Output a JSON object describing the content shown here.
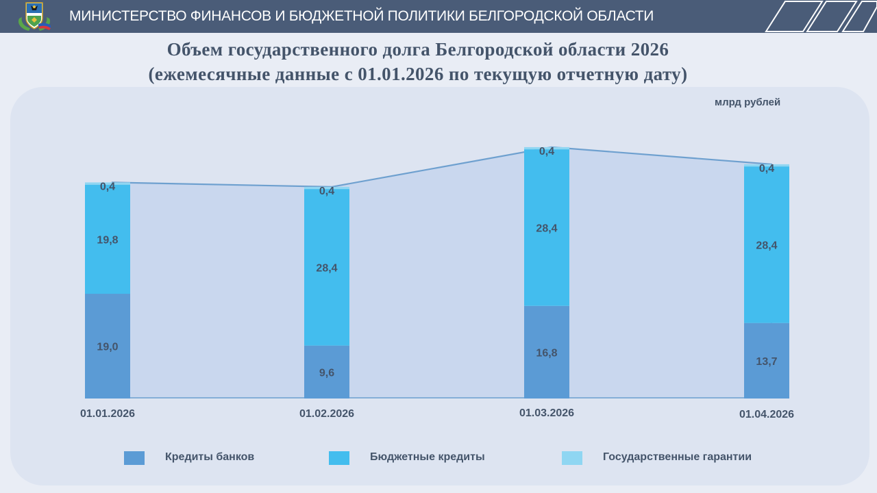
{
  "header": {
    "title": "МИНИСТЕРСТВО ФИНАНСОВ И БЮДЖЕТНОЙ ПОЛИТИКИ БЕЛГОРОДСКОЙ ОБЛАСТИ",
    "logo_icon": "belgorod-coat-of-arms-icon"
  },
  "title_line1": "Объем государственного долга Белгородской области 2026",
  "title_line2": "(ежемесячные данные с 01.01.2026 по текущую отчетную дату)",
  "unit_label": "млрд рублей",
  "colors": {
    "header": "#4a5c78",
    "bank_credits": "#5b9bd5",
    "budget_credits": "#43bdee",
    "guarantees": "#8fd6f2",
    "area_fill": "#c9d7ee",
    "area_line": "#6ea0cf",
    "label_text": "#44546a"
  },
  "chart_data": {
    "type": "bar",
    "stacked": true,
    "categories": [
      "01.01.2026",
      "01.02.2026",
      "01.03.2026",
      "01.04.2026"
    ],
    "series": [
      {
        "name": "Кредиты банков",
        "values": [
          19.0,
          9.6,
          16.8,
          13.7
        ],
        "labels": [
          "19,0",
          "9,6",
          "16,8",
          "13,7"
        ],
        "color": "#5b9bd5"
      },
      {
        "name": "Бюджетные кредиты",
        "values": [
          19.8,
          28.4,
          28.4,
          28.4
        ],
        "labels": [
          "19,8",
          "28,4",
          "28,4",
          "28,4"
        ],
        "color": "#43bdee"
      },
      {
        "name": "Государственные гарантии",
        "values": [
          0.4,
          0.4,
          0.4,
          0.4
        ],
        "labels": [
          "0,4",
          "0,4",
          "0,4",
          "0,4"
        ],
        "color": "#8fd6f2"
      }
    ],
    "overlay": {
      "type": "area",
      "values": [
        39.2,
        38.4,
        45.6,
        42.5
      ]
    },
    "ylim": [
      0,
      50
    ],
    "legend_position": "bottom",
    "grid": false
  }
}
